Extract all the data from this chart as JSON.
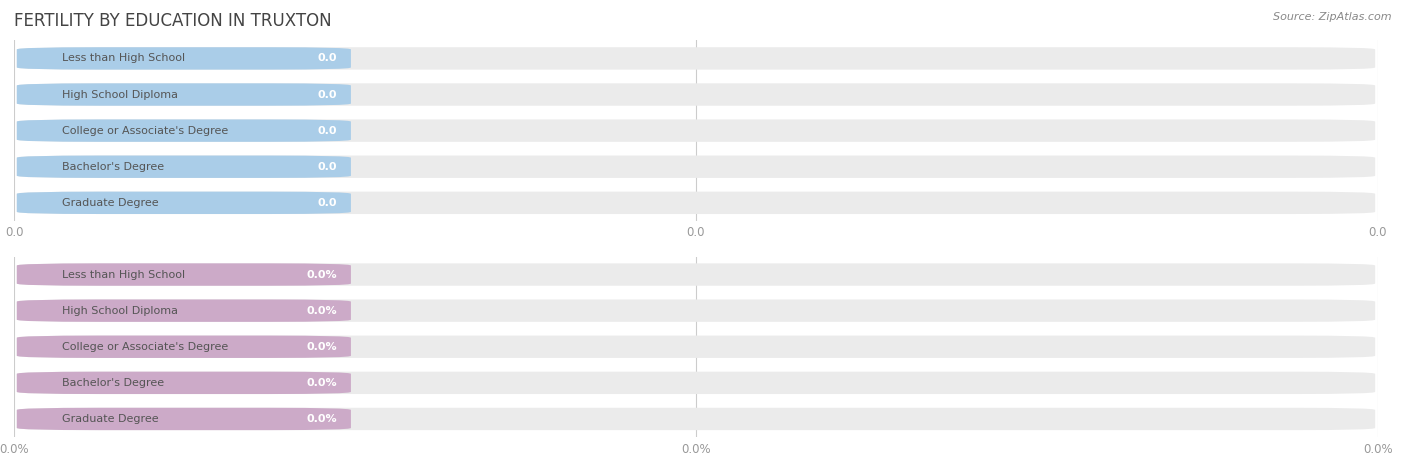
{
  "title": "FERTILITY BY EDUCATION IN TRUXTON",
  "source": "Source: ZipAtlas.com",
  "categories": [
    "Less than High School",
    "High School Diploma",
    "College or Associate's Degree",
    "Bachelor's Degree",
    "Graduate Degree"
  ],
  "top_values": [
    0.0,
    0.0,
    0.0,
    0.0,
    0.0
  ],
  "bottom_values": [
    0.0,
    0.0,
    0.0,
    0.0,
    0.0
  ],
  "top_bar_color": "#aacde8",
  "top_bar_bg": "#ebebeb",
  "top_label_color": "#555555",
  "bottom_bar_color": "#ccaac8",
  "bottom_bar_bg": "#ebebeb",
  "bottom_label_color": "#555555",
  "bg_color": "#ffffff",
  "title_color": "#444444",
  "tick_label_color": "#999999",
  "grid_color": "#cccccc",
  "source_color": "#888888"
}
